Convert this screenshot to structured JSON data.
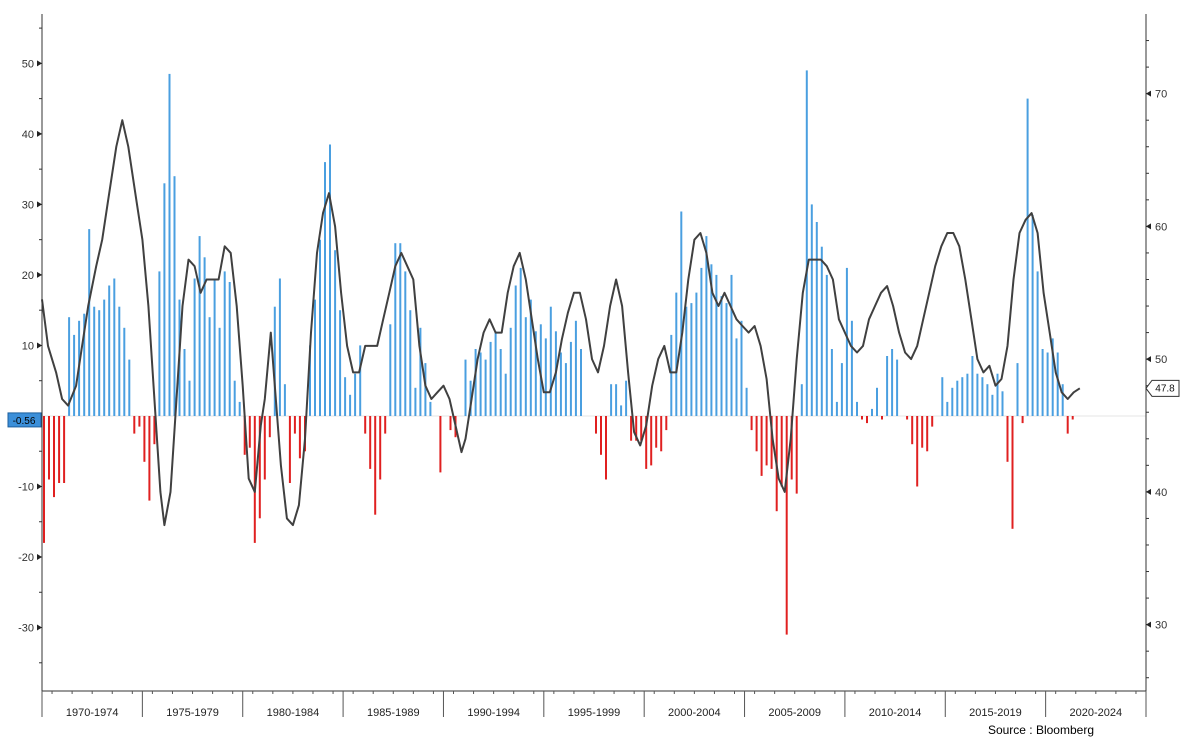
{
  "chart_data": {
    "type": "bar",
    "x_axis": {
      "categories": [
        "1970-1974",
        "1975-1979",
        "1980-1984",
        "1985-1989",
        "1990-1994",
        "1995-1999",
        "2000-2004",
        "2005-2009",
        "2010-2014",
        "2015-2019",
        "2020-2024"
      ],
      "start_year": 1970,
      "end_year": 2025
    },
    "left_axis": {
      "min": -39,
      "max": 57,
      "ticks": [
        50,
        40,
        30,
        20,
        10,
        -10,
        -20,
        -30
      ]
    },
    "right_axis": {
      "min": 25,
      "max": 76,
      "ticks": [
        70,
        60,
        50,
        40,
        30
      ]
    },
    "colors": {
      "positive": "#4a9fe0",
      "negative": "#e02020",
      "line": "#404040",
      "badge_left": "#3b8fd9"
    },
    "bars": [
      {
        "x": 1970.1,
        "v": -18
      },
      {
        "x": 1970.35,
        "v": -9
      },
      {
        "x": 1970.6,
        "v": -11.5
      },
      {
        "x": 1970.85,
        "v": -9.5
      },
      {
        "x": 1971.1,
        "v": -9.5
      },
      {
        "x": 1971.35,
        "v": 14
      },
      {
        "x": 1971.6,
        "v": 11.5
      },
      {
        "x": 1971.85,
        "v": 13.5
      },
      {
        "x": 1972.1,
        "v": 14.5
      },
      {
        "x": 1972.35,
        "v": 26.5
      },
      {
        "x": 1972.6,
        "v": 15.5
      },
      {
        "x": 1972.85,
        "v": 15
      },
      {
        "x": 1973.1,
        "v": 16.5
      },
      {
        "x": 1973.35,
        "v": 18.5
      },
      {
        "x": 1973.6,
        "v": 19.5
      },
      {
        "x": 1973.85,
        "v": 15.5
      },
      {
        "x": 1974.1,
        "v": 12.5
      },
      {
        "x": 1974.35,
        "v": 8
      },
      {
        "x": 1974.6,
        "v": -2.5
      },
      {
        "x": 1974.85,
        "v": -1.5
      },
      {
        "x": 1975.1,
        "v": -6.5
      },
      {
        "x": 1975.35,
        "v": -12
      },
      {
        "x": 1975.6,
        "v": -4
      },
      {
        "x": 1975.85,
        "v": 20.5
      },
      {
        "x": 1976.1,
        "v": 33
      },
      {
        "x": 1976.35,
        "v": 48.5
      },
      {
        "x": 1976.6,
        "v": 34
      },
      {
        "x": 1976.85,
        "v": 16.5
      },
      {
        "x": 1977.1,
        "v": 9.5
      },
      {
        "x": 1977.35,
        "v": 5
      },
      {
        "x": 1977.6,
        "v": 19.5
      },
      {
        "x": 1977.85,
        "v": 25.5
      },
      {
        "x": 1978.1,
        "v": 22.5
      },
      {
        "x": 1978.35,
        "v": 14
      },
      {
        "x": 1978.6,
        "v": 19.5
      },
      {
        "x": 1978.85,
        "v": 12.5
      },
      {
        "x": 1979.1,
        "v": 20.5
      },
      {
        "x": 1979.35,
        "v": 19
      },
      {
        "x": 1979.6,
        "v": 5
      },
      {
        "x": 1979.85,
        "v": 2
      },
      {
        "x": 1980.1,
        "v": -5.5
      },
      {
        "x": 1980.35,
        "v": -4.5
      },
      {
        "x": 1980.6,
        "v": -18
      },
      {
        "x": 1980.85,
        "v": -14.5
      },
      {
        "x": 1981.1,
        "v": -9
      },
      {
        "x": 1981.35,
        "v": -3
      },
      {
        "x": 1981.6,
        "v": 15.5
      },
      {
        "x": 1981.85,
        "v": 19.5
      },
      {
        "x": 1982.1,
        "v": 4.5
      },
      {
        "x": 1982.35,
        "v": -9.5
      },
      {
        "x": 1982.6,
        "v": -2.5
      },
      {
        "x": 1982.85,
        "v": -6
      },
      {
        "x": 1983.1,
        "v": -5
      },
      {
        "x": 1983.35,
        "v": 10
      },
      {
        "x": 1983.6,
        "v": 16.5
      },
      {
        "x": 1983.85,
        "v": 25
      },
      {
        "x": 1984.1,
        "v": 36
      },
      {
        "x": 1984.35,
        "v": 38.5
      },
      {
        "x": 1984.6,
        "v": 23.5
      },
      {
        "x": 1984.85,
        "v": 15
      },
      {
        "x": 1985.1,
        "v": 5.5
      },
      {
        "x": 1985.35,
        "v": 3
      },
      {
        "x": 1985.6,
        "v": 6
      },
      {
        "x": 1985.85,
        "v": 10
      },
      {
        "x": 1986.1,
        "v": -2.5
      },
      {
        "x": 1986.35,
        "v": -7.5
      },
      {
        "x": 1986.6,
        "v": -14
      },
      {
        "x": 1986.85,
        "v": -9
      },
      {
        "x": 1987.1,
        "v": -2.5
      },
      {
        "x": 1987.35,
        "v": 13
      },
      {
        "x": 1987.6,
        "v": 24.5
      },
      {
        "x": 1987.85,
        "v": 24.5
      },
      {
        "x": 1988.1,
        "v": 20.5
      },
      {
        "x": 1988.35,
        "v": 15
      },
      {
        "x": 1988.6,
        "v": 4
      },
      {
        "x": 1988.85,
        "v": 12.5
      },
      {
        "x": 1989.1,
        "v": 7.5
      },
      {
        "x": 1989.35,
        "v": 2
      },
      {
        "x": 1989.85,
        "v": -8
      },
      {
        "x": 1990.35,
        "v": -2
      },
      {
        "x": 1990.6,
        "v": -3
      },
      {
        "x": 1991.1,
        "v": 8
      },
      {
        "x": 1991.35,
        "v": 5
      },
      {
        "x": 1991.6,
        "v": 9.5
      },
      {
        "x": 1991.85,
        "v": 9
      },
      {
        "x": 1992.1,
        "v": 8
      },
      {
        "x": 1992.35,
        "v": 10.5
      },
      {
        "x": 1992.6,
        "v": 12
      },
      {
        "x": 1992.85,
        "v": 9.5
      },
      {
        "x": 1993.1,
        "v": 6
      },
      {
        "x": 1993.35,
        "v": 12.5
      },
      {
        "x": 1993.6,
        "v": 18.5
      },
      {
        "x": 1993.85,
        "v": 21
      },
      {
        "x": 1994.1,
        "v": 14
      },
      {
        "x": 1994.35,
        "v": 16.5
      },
      {
        "x": 1994.6,
        "v": 12
      },
      {
        "x": 1994.85,
        "v": 13
      },
      {
        "x": 1995.1,
        "v": 11
      },
      {
        "x": 1995.35,
        "v": 15.5
      },
      {
        "x": 1995.6,
        "v": 12
      },
      {
        "x": 1995.85,
        "v": 9
      },
      {
        "x": 1996.1,
        "v": 7.5
      },
      {
        "x": 1996.35,
        "v": 10.5
      },
      {
        "x": 1996.6,
        "v": 13.5
      },
      {
        "x": 1996.85,
        "v": 9.5
      },
      {
        "x": 1997.6,
        "v": -2.5
      },
      {
        "x": 1997.85,
        "v": -5.5
      },
      {
        "x": 1998.1,
        "v": -9
      },
      {
        "x": 1998.35,
        "v": 4.5
      },
      {
        "x": 1998.6,
        "v": 4.5
      },
      {
        "x": 1998.85,
        "v": 1.5
      },
      {
        "x": 1999.1,
        "v": 5
      },
      {
        "x": 1999.35,
        "v": -3.5
      },
      {
        "x": 1999.6,
        "v": -3.5
      },
      {
        "x": 1999.85,
        "v": -3.5
      },
      {
        "x": 2000.1,
        "v": -7.5
      },
      {
        "x": 2000.35,
        "v": -7
      },
      {
        "x": 2000.6,
        "v": -4.5
      },
      {
        "x": 2000.85,
        "v": -5
      },
      {
        "x": 2001.1,
        "v": -2
      },
      {
        "x": 2001.35,
        "v": 11.5
      },
      {
        "x": 2001.6,
        "v": 17.5
      },
      {
        "x": 2001.85,
        "v": 29
      },
      {
        "x": 2002.1,
        "v": 15.5
      },
      {
        "x": 2002.35,
        "v": 16
      },
      {
        "x": 2002.6,
        "v": 17.5
      },
      {
        "x": 2002.85,
        "v": 21
      },
      {
        "x": 2003.1,
        "v": 25.5
      },
      {
        "x": 2003.35,
        "v": 21.5
      },
      {
        "x": 2003.6,
        "v": 20
      },
      {
        "x": 2003.85,
        "v": 17
      },
      {
        "x": 2004.1,
        "v": 16
      },
      {
        "x": 2004.35,
        "v": 20
      },
      {
        "x": 2004.6,
        "v": 11
      },
      {
        "x": 2004.85,
        "v": 13.5
      },
      {
        "x": 2005.1,
        "v": 4
      },
      {
        "x": 2005.35,
        "v": -2
      },
      {
        "x": 2005.6,
        "v": -5
      },
      {
        "x": 2005.85,
        "v": -8.5
      },
      {
        "x": 2006.1,
        "v": -7
      },
      {
        "x": 2006.35,
        "v": -7.5
      },
      {
        "x": 2006.6,
        "v": -13.5
      },
      {
        "x": 2006.85,
        "v": -10
      },
      {
        "x": 2007.1,
        "v": -31
      },
      {
        "x": 2007.35,
        "v": -9
      },
      {
        "x": 2007.6,
        "v": -11
      },
      {
        "x": 2007.85,
        "v": 4.5
      },
      {
        "x": 2008.1,
        "v": 49
      },
      {
        "x": 2008.35,
        "v": 30
      },
      {
        "x": 2008.6,
        "v": 27.5
      },
      {
        "x": 2008.85,
        "v": 24
      },
      {
        "x": 2009.1,
        "v": 20
      },
      {
        "x": 2009.35,
        "v": 9.5
      },
      {
        "x": 2009.6,
        "v": 2
      },
      {
        "x": 2009.85,
        "v": 7.5
      },
      {
        "x": 2010.1,
        "v": 21
      },
      {
        "x": 2010.35,
        "v": 13.5
      },
      {
        "x": 2010.6,
        "v": 2
      },
      {
        "x": 2010.85,
        "v": -0.5
      },
      {
        "x": 2011.1,
        "v": -1
      },
      {
        "x": 2011.35,
        "v": 1
      },
      {
        "x": 2011.6,
        "v": 4
      },
      {
        "x": 2011.85,
        "v": -0.5
      },
      {
        "x": 2012.1,
        "v": 8.5
      },
      {
        "x": 2012.35,
        "v": 9.5
      },
      {
        "x": 2012.6,
        "v": 8
      },
      {
        "x": 2013.1,
        "v": -0.5
      },
      {
        "x": 2013.35,
        "v": -4
      },
      {
        "x": 2013.6,
        "v": -10
      },
      {
        "x": 2013.85,
        "v": -4.5
      },
      {
        "x": 2014.1,
        "v": -5
      },
      {
        "x": 2014.35,
        "v": -1.5
      },
      {
        "x": 2014.85,
        "v": 5.5
      },
      {
        "x": 2015.1,
        "v": 2
      },
      {
        "x": 2015.35,
        "v": 4
      },
      {
        "x": 2015.6,
        "v": 5
      },
      {
        "x": 2015.85,
        "v": 5.5
      },
      {
        "x": 2016.1,
        "v": 6
      },
      {
        "x": 2016.35,
        "v": 8.5
      },
      {
        "x": 2016.6,
        "v": 6
      },
      {
        "x": 2016.85,
        "v": 5.5
      },
      {
        "x": 2017.1,
        "v": 4.5
      },
      {
        "x": 2017.35,
        "v": 3
      },
      {
        "x": 2017.6,
        "v": 6
      },
      {
        "x": 2017.85,
        "v": 3.5
      },
      {
        "x": 2018.1,
        "v": -6.5
      },
      {
        "x": 2018.35,
        "v": -16
      },
      {
        "x": 2018.6,
        "v": 7.5
      },
      {
        "x": 2018.85,
        "v": -1
      },
      {
        "x": 2019.1,
        "v": 45
      },
      {
        "x": 2019.35,
        "v": 28.5
      },
      {
        "x": 2019.6,
        "v": 20.5
      },
      {
        "x": 2019.85,
        "v": 9.5
      },
      {
        "x": 2020.1,
        "v": 9
      },
      {
        "x": 2020.35,
        "v": 11
      },
      {
        "x": 2020.6,
        "v": 9
      },
      {
        "x": 2020.85,
        "v": 4.5
      },
      {
        "x": 2021.1,
        "v": -2.5
      },
      {
        "x": 2021.35,
        "v": -0.5
      }
    ],
    "line_series": [
      [
        1970.0,
        54.5
      ],
      [
        1970.3,
        51
      ],
      [
        1970.7,
        49
      ],
      [
        1971.0,
        47
      ],
      [
        1971.3,
        46.5
      ],
      [
        1971.7,
        48
      ],
      [
        1972.0,
        51
      ],
      [
        1972.3,
        54
      ],
      [
        1972.7,
        57
      ],
      [
        1973.0,
        59
      ],
      [
        1973.3,
        62
      ],
      [
        1973.7,
        66
      ],
      [
        1974.0,
        68
      ],
      [
        1974.3,
        66
      ],
      [
        1974.7,
        62
      ],
      [
        1975.0,
        59
      ],
      [
        1975.3,
        54
      ],
      [
        1975.6,
        47
      ],
      [
        1975.9,
        40
      ],
      [
        1976.1,
        37.5
      ],
      [
        1976.4,
        40
      ],
      [
        1976.7,
        47
      ],
      [
        1977.0,
        54
      ],
      [
        1977.3,
        57.5
      ],
      [
        1977.6,
        57
      ],
      [
        1977.9,
        55
      ],
      [
        1978.2,
        56
      ],
      [
        1978.5,
        56
      ],
      [
        1978.8,
        56
      ],
      [
        1979.1,
        58.5
      ],
      [
        1979.4,
        58
      ],
      [
        1979.7,
        54
      ],
      [
        1980.0,
        48
      ],
      [
        1980.3,
        41
      ],
      [
        1980.6,
        40
      ],
      [
        1980.9,
        45
      ],
      [
        1981.1,
        47
      ],
      [
        1981.4,
        52
      ],
      [
        1981.6,
        48
      ],
      [
        1981.9,
        42
      ],
      [
        1982.2,
        38
      ],
      [
        1982.5,
        37.5
      ],
      [
        1982.8,
        39
      ],
      [
        1983.1,
        44
      ],
      [
        1983.4,
        52
      ],
      [
        1983.7,
        58
      ],
      [
        1984.0,
        61
      ],
      [
        1984.3,
        62.5
      ],
      [
        1984.6,
        60
      ],
      [
        1984.9,
        55
      ],
      [
        1985.2,
        51
      ],
      [
        1985.5,
        49
      ],
      [
        1985.8,
        49
      ],
      [
        1986.1,
        51
      ],
      [
        1986.4,
        51
      ],
      [
        1986.7,
        51
      ],
      [
        1987.0,
        53
      ],
      [
        1987.3,
        55
      ],
      [
        1987.6,
        57
      ],
      [
        1987.9,
        58
      ],
      [
        1988.2,
        57
      ],
      [
        1988.5,
        56
      ],
      [
        1988.8,
        51
      ],
      [
        1989.1,
        48
      ],
      [
        1989.4,
        47
      ],
      [
        1989.7,
        47.5
      ],
      [
        1990.0,
        48
      ],
      [
        1990.3,
        47
      ],
      [
        1990.6,
        45
      ],
      [
        1990.9,
        43
      ],
      [
        1991.1,
        44
      ],
      [
        1991.4,
        47
      ],
      [
        1991.7,
        50
      ],
      [
        1992.0,
        52
      ],
      [
        1992.3,
        53
      ],
      [
        1992.6,
        52
      ],
      [
        1992.9,
        52
      ],
      [
        1993.2,
        55
      ],
      [
        1993.5,
        57
      ],
      [
        1993.8,
        58
      ],
      [
        1994.1,
        56
      ],
      [
        1994.4,
        53
      ],
      [
        1994.7,
        50
      ],
      [
        1995.0,
        47.5
      ],
      [
        1995.3,
        47.5
      ],
      [
        1995.6,
        49
      ],
      [
        1995.9,
        51.5
      ],
      [
        1996.2,
        53.5
      ],
      [
        1996.5,
        55
      ],
      [
        1996.8,
        55
      ],
      [
        1997.1,
        53
      ],
      [
        1997.4,
        50
      ],
      [
        1997.7,
        49
      ],
      [
        1998.0,
        51
      ],
      [
        1998.3,
        54
      ],
      [
        1998.6,
        56
      ],
      [
        1998.9,
        54
      ],
      [
        1999.2,
        49
      ],
      [
        1999.5,
        44.5
      ],
      [
        1999.8,
        43.5
      ],
      [
        2000.1,
        45
      ],
      [
        2000.4,
        48
      ],
      [
        2000.7,
        50
      ],
      [
        2001.0,
        51
      ],
      [
        2001.3,
        49
      ],
      [
        2001.6,
        49
      ],
      [
        2001.9,
        52
      ],
      [
        2002.2,
        56
      ],
      [
        2002.5,
        59
      ],
      [
        2002.8,
        59.5
      ],
      [
        2003.1,
        58
      ],
      [
        2003.4,
        55
      ],
      [
        2003.7,
        54
      ],
      [
        2004.0,
        55
      ],
      [
        2004.3,
        54
      ],
      [
        2004.6,
        53
      ],
      [
        2004.9,
        52.5
      ],
      [
        2005.2,
        52
      ],
      [
        2005.5,
        52.5
      ],
      [
        2005.8,
        51
      ],
      [
        2006.1,
        48.5
      ],
      [
        2006.4,
        44
      ],
      [
        2006.7,
        41
      ],
      [
        2007.0,
        40
      ],
      [
        2007.3,
        44
      ],
      [
        2007.6,
        50
      ],
      [
        2007.9,
        55
      ],
      [
        2008.2,
        57.5
      ],
      [
        2008.5,
        57.5
      ],
      [
        2008.8,
        57.5
      ],
      [
        2009.1,
        57
      ],
      [
        2009.4,
        56
      ],
      [
        2009.7,
        53
      ],
      [
        2010.0,
        52
      ],
      [
        2010.3,
        51
      ],
      [
        2010.6,
        50.5
      ],
      [
        2010.9,
        51
      ],
      [
        2011.2,
        53
      ],
      [
        2011.5,
        54
      ],
      [
        2011.8,
        55
      ],
      [
        2012.1,
        55.5
      ],
      [
        2012.4,
        54
      ],
      [
        2012.7,
        52
      ],
      [
        2013.0,
        50.5
      ],
      [
        2013.3,
        50
      ],
      [
        2013.6,
        51
      ],
      [
        2013.9,
        53
      ],
      [
        2014.2,
        55
      ],
      [
        2014.5,
        57
      ],
      [
        2014.8,
        58.5
      ],
      [
        2015.1,
        59.5
      ],
      [
        2015.4,
        59.5
      ],
      [
        2015.7,
        58.5
      ],
      [
        2016.0,
        56
      ],
      [
        2016.3,
        53
      ],
      [
        2016.6,
        50
      ],
      [
        2016.9,
        49
      ],
      [
        2017.2,
        49.5
      ],
      [
        2017.5,
        48
      ],
      [
        2017.8,
        48.5
      ],
      [
        2018.1,
        51
      ],
      [
        2018.4,
        56
      ],
      [
        2018.7,
        59.5
      ],
      [
        2019.0,
        60.5
      ],
      [
        2019.3,
        61
      ],
      [
        2019.6,
        59.5
      ],
      [
        2019.9,
        55
      ],
      [
        2020.2,
        52
      ],
      [
        2020.5,
        49
      ],
      [
        2020.8,
        47.5
      ],
      [
        2021.1,
        47
      ],
      [
        2021.4,
        47.5
      ],
      [
        2021.7,
        47.8
      ]
    ],
    "last_values": {
      "bar_label": "-0.56",
      "line_label": "47.8"
    }
  },
  "footer": {
    "source": "Source : Bloomberg"
  }
}
